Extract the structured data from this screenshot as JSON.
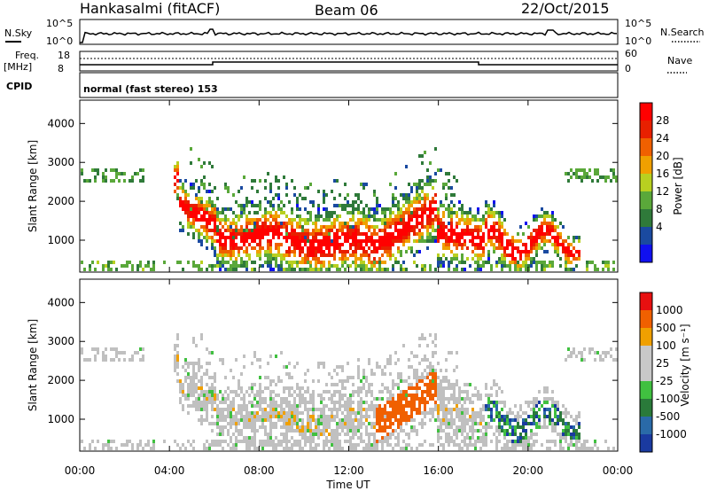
{
  "header": {
    "station": "Hankasalmi (fitACF)",
    "beam": "Beam 06",
    "date": "22/Oct/2015"
  },
  "panels": {
    "nsky_label": "N.Sky",
    "nsearch_label": "N.Search",
    "freq_label_1": "Freq.",
    "freq_label_2": "[MHz]",
    "nave_label": "Nave",
    "cpid_label": "CPID",
    "cpid_text": "normal (fast stereo) 153",
    "nsky_ticks": [
      "10^5",
      "10^0"
    ],
    "nsearch_ticks": [
      "10^5",
      "10^0"
    ],
    "freq_ticks": [
      "18",
      "8"
    ],
    "nave_ticks": [
      "60",
      "0"
    ]
  },
  "colors": {
    "power_scale": [
      "#1010f0",
      "#1a4aa0",
      "#2f7a3a",
      "#5aa83a",
      "#b8d020",
      "#f0a000",
      "#f06000",
      "#e82000",
      "#ff0000"
    ],
    "velocity_scale": [
      "#1a3aa0",
      "#2a6aa8",
      "#2a7a3a",
      "#40c040",
      "#c8c8c8",
      "#c8c8c8",
      "#f0a000",
      "#f06000",
      "#e81010"
    ],
    "ground_scatter": "#c0c0c0"
  },
  "chart_data": [
    {
      "type": "heatmap",
      "title": "Power",
      "ylabel": "Slant Range [km]",
      "xlabel": "Time UT",
      "ylim": [
        180,
        4600
      ],
      "yticks": [
        "4000",
        "3000",
        "2000",
        "1000"
      ],
      "xticks": [
        "00:00",
        "04:00",
        "08:00",
        "12:00",
        "16:00",
        "20:00",
        "00:00"
      ],
      "colorbar_label": "Power [dB]",
      "colorbar_ticks": [
        "28",
        "24",
        "20",
        "16",
        "12",
        "8",
        "4"
      ]
    },
    {
      "type": "heatmap",
      "title": "Velocity",
      "ylabel": "Slant Range [km]",
      "xlabel": "Time UT",
      "ylim": [
        180,
        4600
      ],
      "yticks": [
        "4000",
        "3000",
        "2000",
        "1000"
      ],
      "xticks": [
        "00:00",
        "04:00",
        "08:00",
        "12:00",
        "16:00",
        "20:00",
        "00:00"
      ],
      "colorbar_label": "Velocity [m s⁻¹]",
      "colorbar_ticks": [
        "1000",
        "500",
        "100",
        "25",
        "-25",
        "-100",
        "-500",
        "-1000"
      ]
    }
  ]
}
